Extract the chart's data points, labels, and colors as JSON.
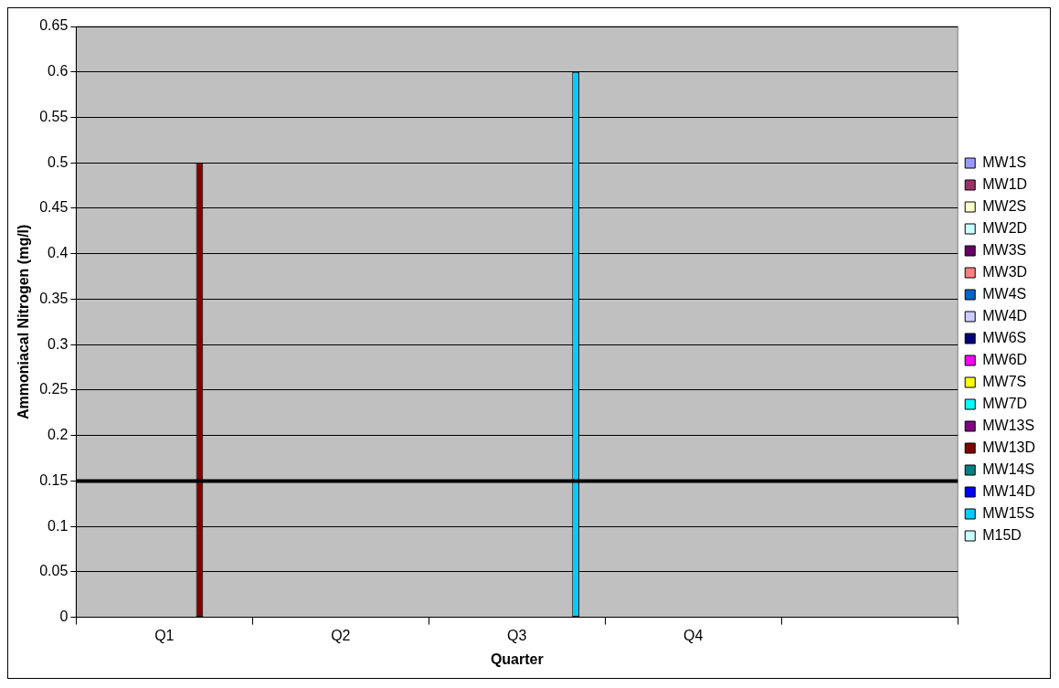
{
  "chart_data": {
    "type": "bar",
    "xlabel": "Quarter",
    "ylabel": "Ammoniacal Nitrogen (mg/l)",
    "categories": [
      "Q1",
      "Q2",
      "Q3",
      "Q4",
      null
    ],
    "series": [
      {
        "name": "MW1S",
        "color": "#9999ff",
        "values": [
          null,
          null,
          null,
          null,
          null
        ]
      },
      {
        "name": "MW1D",
        "color": "#993366",
        "values": [
          null,
          null,
          null,
          null,
          null
        ]
      },
      {
        "name": "MW2S",
        "color": "#ffffcc",
        "values": [
          null,
          null,
          null,
          null,
          null
        ]
      },
      {
        "name": "MW2D",
        "color": "#ccffff",
        "values": [
          null,
          null,
          null,
          null,
          null
        ]
      },
      {
        "name": "MW3S",
        "color": "#660066",
        "values": [
          null,
          null,
          null,
          null,
          null
        ]
      },
      {
        "name": "MW3D",
        "color": "#ff8080",
        "values": [
          null,
          null,
          null,
          null,
          null
        ]
      },
      {
        "name": "MW4S",
        "color": "#0066cc",
        "values": [
          null,
          null,
          null,
          null,
          null
        ]
      },
      {
        "name": "MW4D",
        "color": "#ccccff",
        "values": [
          null,
          null,
          null,
          null,
          null
        ]
      },
      {
        "name": "MW6S",
        "color": "#000080",
        "values": [
          null,
          null,
          null,
          null,
          null
        ]
      },
      {
        "name": "MW6D",
        "color": "#ff00ff",
        "values": [
          null,
          null,
          null,
          null,
          null
        ]
      },
      {
        "name": "MW7S",
        "color": "#ffff00",
        "values": [
          null,
          null,
          null,
          null,
          null
        ]
      },
      {
        "name": "MW7D",
        "color": "#00ffff",
        "values": [
          null,
          null,
          null,
          null,
          null
        ]
      },
      {
        "name": "MW13S",
        "color": "#800080",
        "values": [
          null,
          null,
          null,
          null,
          null
        ]
      },
      {
        "name": "MW13D",
        "color": "#800000",
        "values": [
          0.5,
          null,
          null,
          null,
          null
        ]
      },
      {
        "name": "MW14S",
        "color": "#008080",
        "values": [
          null,
          null,
          null,
          null,
          null
        ]
      },
      {
        "name": "MW14D",
        "color": "#0000ff",
        "values": [
          null,
          null,
          null,
          null,
          null
        ]
      },
      {
        "name": "MW15S",
        "color": "#00ccff",
        "values": [
          null,
          null,
          0.6,
          null,
          null
        ]
      },
      {
        "name": "M15D",
        "color": "#ccffff",
        "values": [
          null,
          null,
          null,
          null,
          null
        ]
      }
    ],
    "ylim": [
      0,
      0.65
    ],
    "yticks": [
      0,
      0.05,
      0.1,
      0.15,
      0.2,
      0.25,
      0.3,
      0.35,
      0.4,
      0.45,
      0.5,
      0.55,
      0.6,
      0.65
    ],
    "grid": "y",
    "legend": "right",
    "ref_lines": [
      {
        "axis": "y",
        "value": 0.15,
        "color": "#000000"
      }
    ]
  }
}
